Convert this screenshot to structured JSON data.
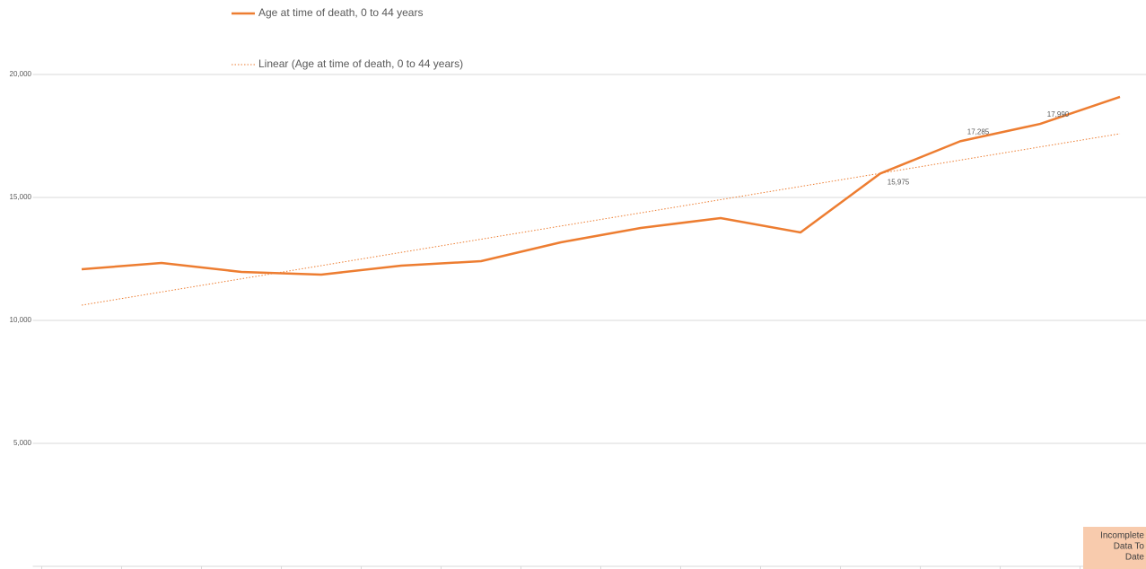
{
  "chart_data": {
    "type": "line",
    "categories": [
      null,
      null,
      null,
      null,
      null,
      null,
      null,
      null,
      null,
      null,
      null,
      null,
      null,
      null
    ],
    "series": [
      {
        "name": "Age at time of death, 0 to 44 years",
        "color": "#ed7d31",
        "style": "solid",
        "values": [
          12080,
          12336,
          11971,
          11861,
          12226,
          12409,
          13175,
          13759,
          14161,
          13577,
          15975,
          17285,
          17990,
          19088
        ],
        "value_labels": [
          null,
          null,
          null,
          null,
          null,
          null,
          null,
          null,
          null,
          null,
          "15,975",
          "17,285",
          "17,990",
          null
        ]
      },
      {
        "name": "Linear (Age at time of death, 0 to 44 years)",
        "color": "#ed7d31",
        "style": "dotted",
        "values": [
          10620,
          11156,
          11692,
          12228,
          12765,
          13301,
          13837,
          14373,
          14910,
          15446,
          15982,
          16518,
          17055,
          17591
        ]
      }
    ],
    "ylim": [
      0,
      23029
    ],
    "yticks": [
      {
        "value": 5000,
        "label": "5,000"
      },
      {
        "value": 10000,
        "label": "10,000"
      },
      {
        "value": 15000,
        "label": "15,000"
      },
      {
        "value": 20000,
        "label": "20,000"
      }
    ],
    "grid": true,
    "legend": "top",
    "annotations": [
      "Incomplete",
      "Data To",
      "Date"
    ]
  }
}
